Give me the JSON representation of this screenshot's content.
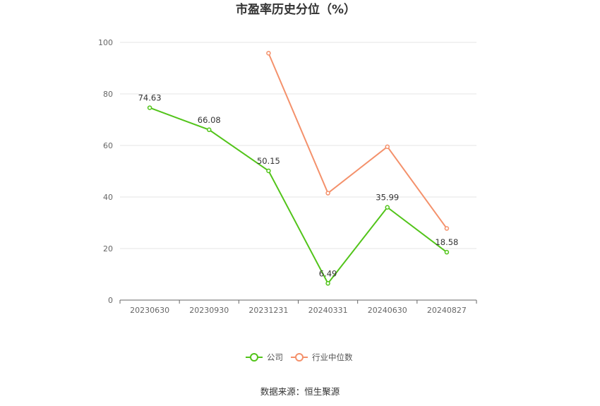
{
  "chart_data": {
    "type": "line",
    "title": "市盈率历史分位（%）",
    "categories": [
      "20230630",
      "20230930",
      "20231231",
      "20240331",
      "20240630",
      "20240827"
    ],
    "ylim": [
      0,
      100
    ],
    "yticks": [
      0,
      20,
      40,
      60,
      80,
      100
    ],
    "grid": true,
    "legend_position": "bottom",
    "series": [
      {
        "name": "公司",
        "color": "#52c41a",
        "values": [
          74.63,
          66.08,
          50.15,
          6.49,
          35.99,
          18.58
        ],
        "labels": [
          "74.63",
          "66.08",
          "50.15",
          "6.49",
          "35.99",
          "18.58"
        ]
      },
      {
        "name": "行业中位数",
        "color": "#f4916b",
        "values": [
          null,
          null,
          95.8,
          41.5,
          59.5,
          27.8
        ]
      }
    ]
  },
  "source_text": "数据来源：恒生聚源"
}
